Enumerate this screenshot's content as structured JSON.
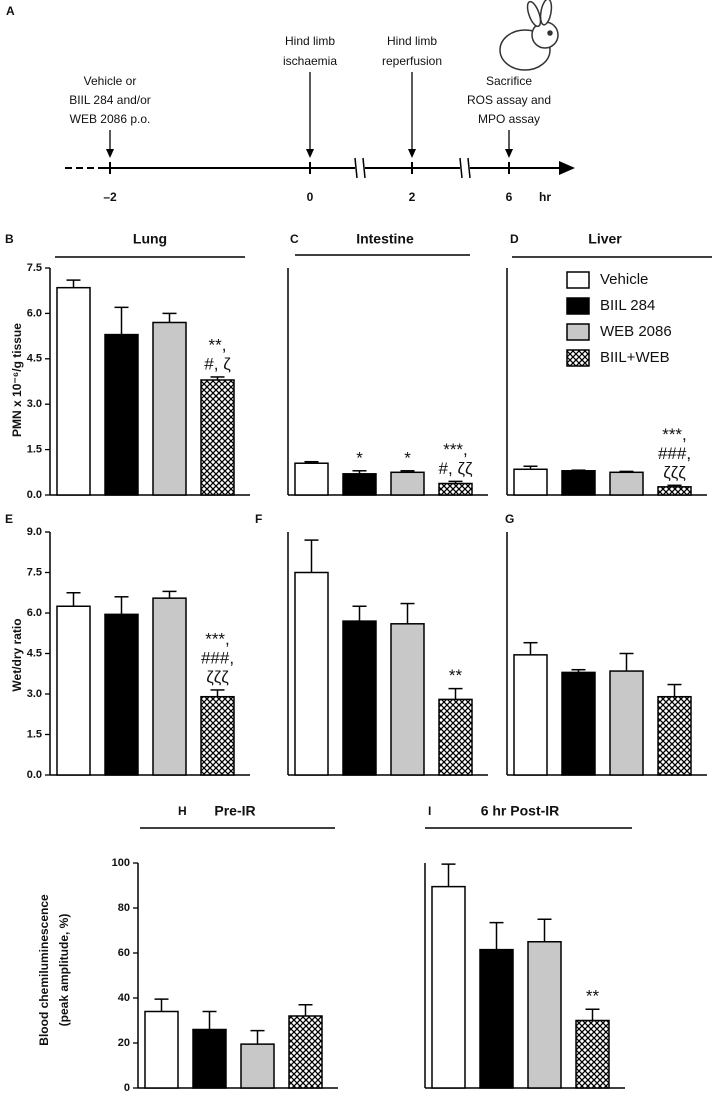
{
  "timeline": {
    "panel": "A",
    "unit": "hr",
    "events": [
      {
        "label": [
          "Vehicle or",
          "BIIL 284 and/or",
          "WEB 2086 p.o."
        ],
        "time": "–2"
      },
      {
        "label": [
          "Hind limb",
          "ischaemia"
        ],
        "time": "0"
      },
      {
        "label": [
          "Hind limb",
          "reperfusion"
        ],
        "time": "2"
      },
      {
        "label": [
          "Sacrifice",
          "ROS assay and",
          "MPO assay"
        ],
        "time": "6"
      }
    ]
  },
  "chart_data": [
    {
      "type": "bar",
      "panel": "B",
      "title": "Lung",
      "ylabel": [
        "PMN x 10⁻⁶/g tissue"
      ],
      "values": [
        6.85,
        5.3,
        5.7,
        3.8
      ],
      "errors": [
        0.25,
        0.9,
        0.3,
        0.1
      ],
      "annotations": [
        null,
        null,
        null,
        [
          "**,",
          "#, ζ"
        ]
      ],
      "colors": [
        "#ffffff",
        "#000000",
        "#c8c8c8",
        "crosshatch"
      ],
      "ylim": [
        0,
        7.5
      ],
      "yticks": [
        {
          "value": 0,
          "label": "0.0"
        },
        1.5,
        {
          "value": 3,
          "label": "3.0"
        },
        4.5,
        {
          "value": 6,
          "label": "6.0"
        },
        7.5
      ]
    },
    {
      "type": "bar",
      "panel": "C",
      "title": "Intestine",
      "values": [
        1.05,
        0.7,
        0.75,
        0.38
      ],
      "errors": [
        0.05,
        0.1,
        0.05,
        0.07
      ],
      "annotations": [
        null,
        [
          "*"
        ],
        [
          "*"
        ],
        [
          "***,",
          "#, ζζ"
        ]
      ],
      "colors": [
        "#ffffff",
        "#000000",
        "#c8c8c8",
        "crosshatch"
      ],
      "ylim": [
        0,
        7.5
      ]
    },
    {
      "type": "bar",
      "panel": "D",
      "title": "Liver",
      "values": [
        0.85,
        0.8,
        0.75,
        0.27
      ],
      "errors": [
        0.1,
        0.02,
        0.03,
        0.05
      ],
      "annotations": [
        null,
        null,
        null,
        [
          "***,",
          "###,",
          "ζζζ"
        ]
      ],
      "colors": [
        "#ffffff",
        "#000000",
        "#c8c8c8",
        "crosshatch"
      ],
      "ylim": [
        0,
        7.5
      ],
      "legend": [
        "Vehicle",
        "BIIL 284",
        "WEB 2086",
        "BIIL+WEB"
      ]
    },
    {
      "type": "bar",
      "panel": "E",
      "ylabel": [
        "Wet/dry ratio"
      ],
      "values": [
        6.25,
        5.95,
        6.55,
        2.9
      ],
      "errors": [
        0.5,
        0.65,
        0.25,
        0.25
      ],
      "annotations": [
        null,
        null,
        null,
        [
          "***,",
          "###,",
          "ζζζ"
        ]
      ],
      "colors": [
        "#ffffff",
        "#000000",
        "#c8c8c8",
        "crosshatch"
      ],
      "ylim": [
        0,
        9
      ],
      "yticks": [
        {
          "value": 0,
          "label": "0.0"
        },
        1.5,
        {
          "value": 3,
          "label": "3.0"
        },
        4.5,
        {
          "value": 6,
          "label": "6.0"
        },
        7.5,
        {
          "value": 9,
          "label": "9.0"
        }
      ]
    },
    {
      "type": "bar",
      "panel": "F",
      "values": [
        7.5,
        5.7,
        5.6,
        2.8
      ],
      "errors": [
        1.2,
        0.55,
        0.75,
        0.4
      ],
      "annotations": [
        null,
        null,
        null,
        [
          "**"
        ]
      ],
      "colors": [
        "#ffffff",
        "#000000",
        "#c8c8c8",
        "crosshatch"
      ],
      "ylim": [
        0,
        9
      ]
    },
    {
      "type": "bar",
      "panel": "G",
      "values": [
        4.45,
        3.8,
        3.85,
        2.9
      ],
      "errors": [
        0.45,
        0.1,
        0.65,
        0.45
      ],
      "colors": [
        "#ffffff",
        "#000000",
        "#c8c8c8",
        "crosshatch"
      ],
      "ylim": [
        0,
        9
      ]
    },
    {
      "type": "bar",
      "panel": "H",
      "title": "Pre-IR",
      "ylabel": [
        "Blood chemiluminescence",
        "(peak amplitude, %)"
      ],
      "values": [
        34,
        26,
        19.5,
        32
      ],
      "errors": [
        5.5,
        8,
        6,
        5
      ],
      "colors": [
        "#ffffff",
        "#000000",
        "#c8c8c8",
        "crosshatch"
      ],
      "ylim": [
        0,
        100
      ],
      "yticks": [
        0,
        20,
        40,
        60,
        80,
        100
      ]
    },
    {
      "type": "bar",
      "panel": "I",
      "title": "6 hr Post-IR",
      "values": [
        89.5,
        61.5,
        65,
        30
      ],
      "errors": [
        10,
        12,
        10,
        5
      ],
      "annotations": [
        null,
        null,
        null,
        [
          "**"
        ]
      ],
      "colors": [
        "#ffffff",
        "#000000",
        "#c8c8c8",
        "crosshatch"
      ],
      "ylim": [
        0,
        100
      ]
    }
  ]
}
